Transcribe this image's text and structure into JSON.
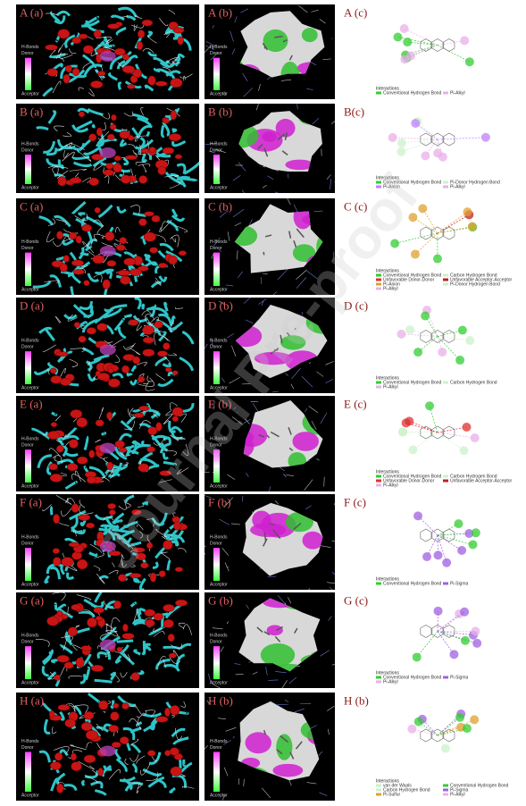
{
  "watermark": "Journal Pre-proof",
  "panels": [
    {
      "a": {
        "label": "A (a)",
        "legend": [
          "H-Bonds",
          "Donor",
          "Acceptor"
        ]
      },
      "b": {
        "label": "A (b)",
        "legend": [
          "H-Bonds",
          "Donor",
          "Acceptor"
        ]
      },
      "c": {
        "label": "A (c)",
        "legend_title": "Interactions",
        "items": [
          {
            "name": "Conventional Hydrogen Bond",
            "color": "#33cc33"
          },
          {
            "name": "Pi-Alkyl",
            "color": "#e8b0e8"
          }
        ]
      }
    },
    {
      "a": {
        "label": "B (a)",
        "legend": [
          "H-Bonds",
          "Donor",
          "Acceptor"
        ]
      },
      "b": {
        "label": "B (b)",
        "legend": [
          "H-Bonds",
          "Donor",
          "Acceptor"
        ]
      },
      "c": {
        "label": "B(c)",
        "legend_title": "Interactions",
        "items": [
          {
            "name": "Conventional Hydrogen Bond",
            "color": "#33cc33"
          },
          {
            "name": "Pi-Donor Hydrogen Bond",
            "color": "#ccf2cc"
          },
          {
            "name": "Pi-Anion",
            "color": "#c080ff"
          },
          {
            "name": "Pi-Alkyl",
            "color": "#e8b0e8"
          }
        ]
      }
    },
    {
      "a": {
        "label": "C (a)",
        "legend": [
          "H-Bonds",
          "Donor",
          "Acceptor"
        ]
      },
      "b": {
        "label": "C (b)",
        "legend": [
          "H-Bonds",
          "Donor",
          "Acceptor"
        ]
      },
      "c": {
        "label": "C (c)",
        "legend_title": "Interactions",
        "items": [
          {
            "name": "Conventional Hydrogen Bond",
            "color": "#33cc33"
          },
          {
            "name": "Carbon Hydrogen Bond",
            "color": "#ccf2cc"
          },
          {
            "name": "Unfavorable Donor-Donor",
            "color": "#e03030"
          },
          {
            "name": "Unfavorable Acceptor-Acceptor",
            "color": "#c02020"
          },
          {
            "name": "Pi-Anion",
            "color": "#e0a030"
          },
          {
            "name": "Pi-Donor Hydrogen Bond",
            "color": "#ccf2cc"
          },
          {
            "name": "Pi-Alkyl",
            "color": "#e8b0e8"
          }
        ]
      }
    },
    {
      "a": {
        "label": "D (a)",
        "legend": [
          "H-Bonds",
          "Donor",
          "Acceptor"
        ]
      },
      "b": {
        "label": "D (b)",
        "legend": [
          "H-Bonds",
          "Donor",
          "Acceptor"
        ]
      },
      "c": {
        "label": "D (c)",
        "legend_title": "Interactions",
        "items": [
          {
            "name": "Conventional Hydrogen Bond",
            "color": "#33cc33"
          },
          {
            "name": "Carbon Hydrogen Bond",
            "color": "#ccf2cc"
          },
          {
            "name": "Pi-Alkyl",
            "color": "#e8b0e8"
          }
        ]
      }
    },
    {
      "a": {
        "label": "E (a)",
        "legend": [
          "H-Bonds",
          "Donor",
          "Acceptor"
        ]
      },
      "b": {
        "label": "E (b)",
        "legend": [
          "H-Bonds",
          "Donor",
          "Acceptor"
        ]
      },
      "c": {
        "label": "E (c)",
        "legend_title": "Interactions",
        "items": [
          {
            "name": "Conventional Hydrogen Bond",
            "color": "#33cc33"
          },
          {
            "name": "Carbon Hydrogen Bond",
            "color": "#ccf2cc"
          },
          {
            "name": "Unfavorable Donor-Donor",
            "color": "#e03030"
          },
          {
            "name": "Unfavorable Acceptor-Acceptor",
            "color": "#c02020"
          },
          {
            "name": "Pi-Alkyl",
            "color": "#e8b0e8"
          }
        ]
      }
    },
    {
      "a": {
        "label": "F (a)",
        "legend": [
          "H-Bonds",
          "Donor",
          "Acceptor"
        ]
      },
      "b": {
        "label": "F (b)",
        "legend": [
          "H-Bonds",
          "Donor",
          "Acceptor"
        ]
      },
      "c": {
        "label": "F (c)",
        "legend_title": "Interactions",
        "items": [
          {
            "name": "Conventional Hydrogen Bond",
            "color": "#33cc33"
          },
          {
            "name": "Pi-Sigma",
            "color": "#a060e0"
          }
        ]
      }
    },
    {
      "a": {
        "label": "G (a)",
        "legend": [
          "H-Bonds",
          "Donor",
          "Acceptor"
        ]
      },
      "b": {
        "label": "G (b)",
        "legend": [
          "H-Bonds",
          "Donor",
          "Acceptor"
        ]
      },
      "c": {
        "label": "G (c)",
        "legend_title": "Interactions",
        "items": [
          {
            "name": "Conventional Hydrogen Bond",
            "color": "#33cc33"
          },
          {
            "name": "Pi-Sigma",
            "color": "#a060e0"
          },
          {
            "name": "Pi-Alkyl",
            "color": "#e8b0e8"
          }
        ]
      }
    },
    {
      "a": {
        "label": "H (a)",
        "legend": [
          "H-Bonds",
          "Donor",
          "Acceptor"
        ]
      },
      "b": {
        "label": "H (b)",
        "legend": [
          "H-Bonds",
          "Donor",
          "Acceptor"
        ]
      },
      "c": {
        "label": "H (b)",
        "legend_title": "Interactions",
        "items": [
          {
            "name": "van der Waals",
            "color": "#ccf2cc"
          },
          {
            "name": "Conventional Hydrogen Bond",
            "color": "#33cc33"
          },
          {
            "name": "Carbon Hydrogen Bond",
            "color": "#ccf2cc"
          },
          {
            "name": "Pi-Sigma",
            "color": "#a060e0"
          },
          {
            "name": "Pi-Sulfur",
            "color": "#e0a030"
          },
          {
            "name": "Pi-Alkyl",
            "color": "#e8b0e8"
          }
        ]
      }
    }
  ]
}
